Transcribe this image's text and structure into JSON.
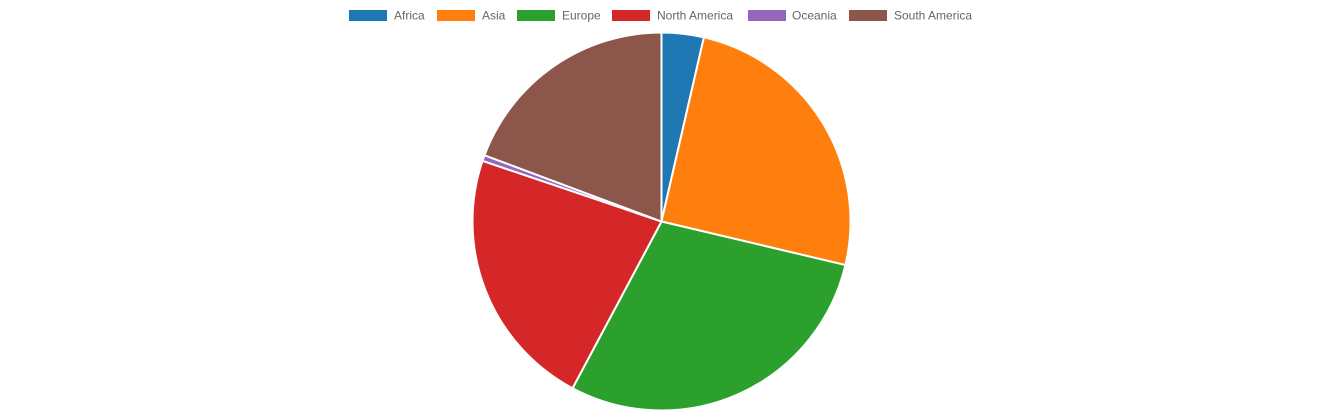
{
  "chart_data": {
    "type": "pie",
    "title": "",
    "legend_position": "top",
    "categories": [
      "Africa",
      "Asia",
      "Europe",
      "North America",
      "Oceania",
      "South America"
    ],
    "values": [
      3.6,
      25.1,
      29.1,
      22.4,
      0.5,
      19.3
    ],
    "colors": [
      "#1f77b4",
      "#ff7f0e",
      "#2ca02c",
      "#d62728",
      "#9467bd",
      "#8c564b"
    ],
    "slice_border_color": "#ffffff"
  }
}
